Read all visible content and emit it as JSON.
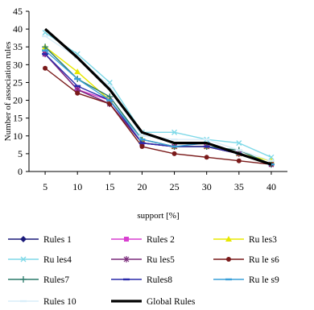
{
  "chart_data": {
    "type": "line",
    "xlabel": "support [%]",
    "ylabel": "Number of association rules",
    "x": [
      5,
      10,
      15,
      20,
      25,
      30,
      35,
      40
    ],
    "xlim": [
      2.5,
      42.5
    ],
    "ylim": [
      0,
      45
    ],
    "yticks": [
      0,
      5,
      10,
      15,
      20,
      25,
      30,
      35,
      40,
      45
    ],
    "grid": false,
    "legend_position": "bottom",
    "series": [
      {
        "name": "Rules 1",
        "color": "#1a1a7a",
        "marker": "diamond",
        "width": 1.4,
        "values": [
          33,
          23,
          19,
          8,
          7,
          7,
          5,
          2
        ]
      },
      {
        "name": "Rules 2",
        "color": "#d93fd0",
        "marker": "square",
        "width": 1.4,
        "values": [
          33,
          23,
          20,
          8,
          7,
          7,
          5,
          2
        ]
      },
      {
        "name": "Ru les3",
        "color": "#e8e800",
        "marker": "triangle",
        "width": 1.4,
        "values": [
          35,
          28,
          20,
          9,
          7,
          7,
          5,
          3
        ]
      },
      {
        "name": "Ru les4",
        "color": "#7fd9e8",
        "marker": "x",
        "width": 1.4,
        "values": [
          39,
          33,
          25,
          11,
          11,
          9,
          8,
          4
        ]
      },
      {
        "name": "Ru les5",
        "color": "#7a2a7a",
        "marker": "star",
        "width": 1.4,
        "values": [
          33,
          23,
          19,
          8,
          7,
          7,
          5,
          2
        ]
      },
      {
        "name": "Ru le s6",
        "color": "#7a1a1a",
        "marker": "circle",
        "width": 1.4,
        "values": [
          29,
          22,
          19,
          7,
          5,
          4,
          3,
          2
        ]
      },
      {
        "name": "Rules7",
        "color": "#2a7a6a",
        "marker": "plus",
        "width": 1.4,
        "values": [
          35,
          26,
          21,
          9,
          7,
          7,
          6,
          2
        ]
      },
      {
        "name": "Rules8",
        "color": "#2a2aaa",
        "marker": "dash",
        "width": 1.4,
        "values": [
          33,
          24,
          20,
          8,
          7,
          7,
          5,
          2
        ]
      },
      {
        "name": "Ru le s9",
        "color": "#3aa0d9",
        "marker": "dash",
        "width": 1.4,
        "values": [
          34,
          26,
          20,
          9,
          7,
          8,
          5,
          2
        ]
      },
      {
        "name": "Rules 10",
        "color": "#d9eef9",
        "marker": "dash",
        "width": 1.4,
        "values": [
          38,
          32,
          24,
          10,
          9,
          9,
          6,
          3
        ]
      },
      {
        "name": "Global Rules",
        "color": "#000000",
        "marker": "none",
        "width": 3.2,
        "values": [
          40,
          32,
          23,
          11,
          8,
          8,
          5,
          2
        ]
      }
    ]
  }
}
